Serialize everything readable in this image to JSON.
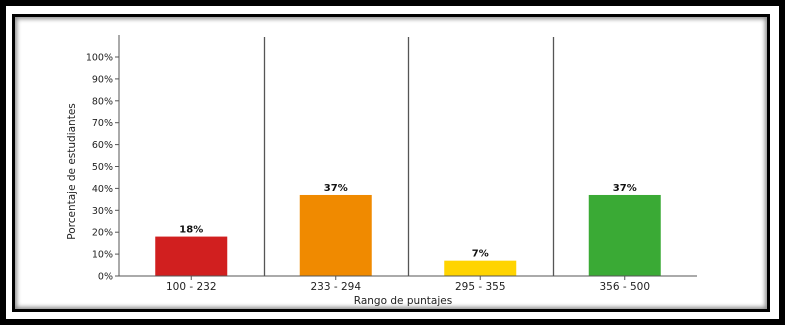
{
  "chart_data": {
    "type": "bar",
    "title": "",
    "xlabel": "Rango de puntajes",
    "ylabel": "Porcentaje de estudiantes",
    "categories": [
      "100 - 232",
      "233 - 294",
      "295 - 355",
      "356 - 500"
    ],
    "values": [
      18,
      37,
      7,
      37
    ],
    "data_labels": [
      "18%",
      "37%",
      "7%",
      "37%"
    ],
    "colors": [
      "#d11f1f",
      "#f08a00",
      "#ffd400",
      "#3aaa35"
    ],
    "ylim": [
      0,
      100
    ],
    "yticks": [
      0,
      10,
      20,
      30,
      40,
      50,
      60,
      70,
      80,
      90,
      100
    ],
    "ytick_labels": [
      "0%",
      "10%",
      "20%",
      "30%",
      "40%",
      "50%",
      "60%",
      "70%",
      "80%",
      "90%",
      "100%"
    ],
    "grid": false,
    "category_separators": true,
    "legend": "none"
  }
}
